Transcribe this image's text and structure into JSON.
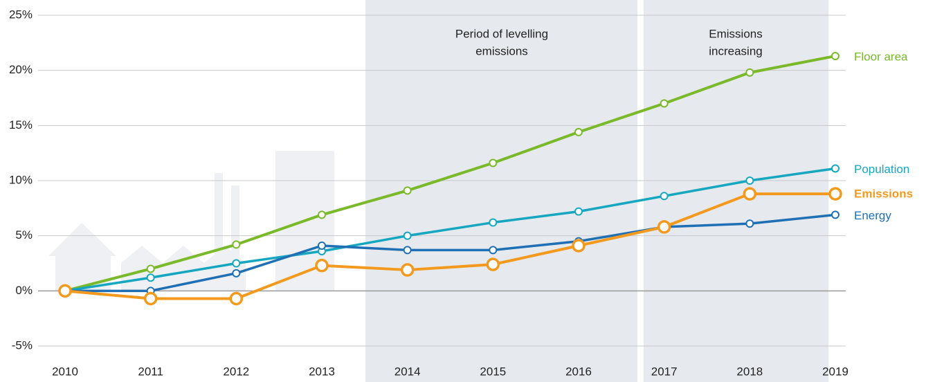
{
  "chart_data": {
    "type": "line",
    "categories": [
      "2010",
      "2011",
      "2012",
      "2013",
      "2014",
      "2015",
      "2016",
      "2017",
      "2018",
      "2019"
    ],
    "series": [
      {
        "name": "Floor area",
        "color": "#7ab929",
        "values": [
          0,
          2.0,
          4.2,
          6.9,
          9.1,
          11.6,
          14.4,
          17.0,
          19.8,
          21.3
        ]
      },
      {
        "name": "Population",
        "color": "#16a7c0",
        "values": [
          0,
          1.2,
          2.5,
          3.6,
          5.0,
          6.2,
          7.2,
          8.6,
          10.0,
          11.1
        ]
      },
      {
        "name": "Energy",
        "color": "#1f6fb5",
        "values": [
          0,
          0,
          1.6,
          4.1,
          3.7,
          3.7,
          4.5,
          5.8,
          6.1,
          6.9
        ]
      },
      {
        "name": "Emissions",
        "color": "#f39a1e",
        "values": [
          0,
          -0.7,
          -0.7,
          2.3,
          1.9,
          2.4,
          4.1,
          5.8,
          8.8,
          8.8
        ]
      }
    ],
    "ylim": [
      -5,
      25
    ],
    "yticks": [
      {
        "value": -5,
        "label": "-5%"
      },
      {
        "value": 0,
        "label": "0%"
      },
      {
        "value": 5,
        "label": "5%"
      },
      {
        "value": 10,
        "label": "10%"
      },
      {
        "value": 15,
        "label": "15%"
      },
      {
        "value": 20,
        "label": "20%"
      },
      {
        "value": 25,
        "label": "25%"
      }
    ],
    "grid": true,
    "annotations": [
      {
        "lines": [
          "Period of levelling",
          "emissions"
        ]
      },
      {
        "lines": [
          "Emissions",
          "increasing"
        ]
      }
    ]
  }
}
